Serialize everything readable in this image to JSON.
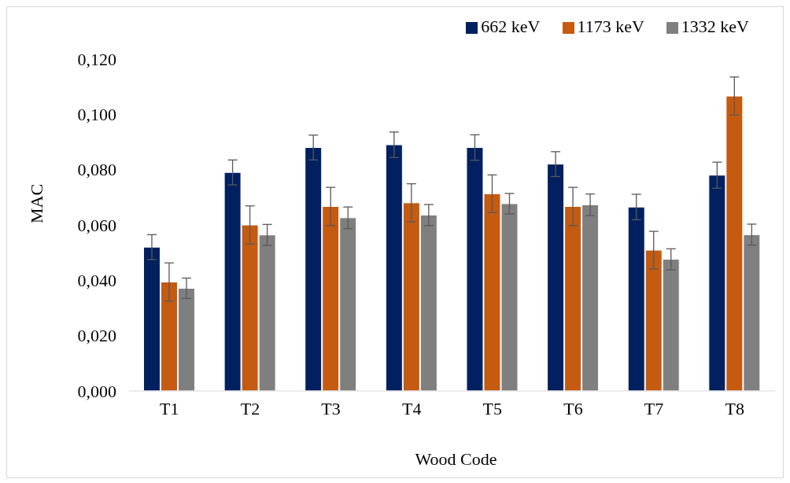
{
  "chart_data": {
    "type": "bar",
    "xlabel": "Wood Code",
    "ylabel": "MAC",
    "categories": [
      "T1",
      "T2",
      "T3",
      "T4",
      "T5",
      "T6",
      "T7",
      "T8"
    ],
    "series": [
      {
        "name": "662 keV",
        "color": "#002060",
        "values": [
          0.052,
          0.079,
          0.088,
          0.089,
          0.088,
          0.082,
          0.0665,
          0.078
        ],
        "errors": [
          0.0045,
          0.0045,
          0.0045,
          0.0046,
          0.0046,
          0.0045,
          0.0046,
          0.0047
        ]
      },
      {
        "name": "1173 keV",
        "color": "#c55a11",
        "values": [
          0.0394,
          0.06,
          0.0667,
          0.068,
          0.0713,
          0.0667,
          0.0509,
          0.1066
        ],
        "errors": [
          0.0069,
          0.0069,
          0.0069,
          0.0069,
          0.0068,
          0.0069,
          0.0068,
          0.0069
        ]
      },
      {
        "name": "1332 keV",
        "color": "#7f7f7f",
        "values": [
          0.0371,
          0.0564,
          0.0626,
          0.0636,
          0.0677,
          0.0673,
          0.0476,
          0.0565
        ],
        "errors": [
          0.0037,
          0.0038,
          0.0039,
          0.0038,
          0.0037,
          0.0039,
          0.0038,
          0.0038
        ]
      }
    ],
    "ylim": [
      0,
      0.12
    ],
    "yticks": [
      {
        "value": 0,
        "label": "0,000"
      },
      {
        "value": 0.02,
        "label": "0,020"
      },
      {
        "value": 0.04,
        "label": "0,040"
      },
      {
        "value": 0.06,
        "label": "0,060"
      },
      {
        "value": 0.08,
        "label": "0,080"
      },
      {
        "value": 0.1,
        "label": "0,100"
      },
      {
        "value": 0.12,
        "label": "0,120"
      }
    ],
    "grid": false,
    "legend": "top right"
  }
}
